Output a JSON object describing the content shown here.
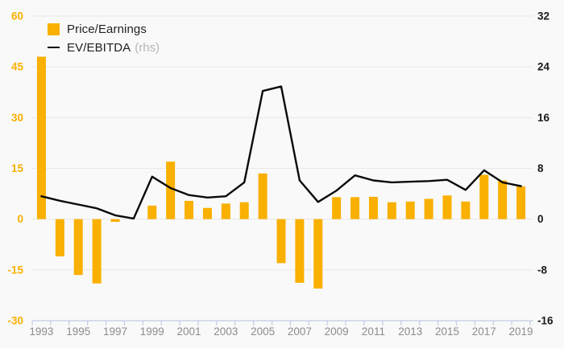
{
  "legend": {
    "price_earnings_label": "Price/Earnings",
    "ev_ebitda_label": "EV/EBITDA",
    "ev_ebitda_suffix": "(rhs)"
  },
  "colors": {
    "background": "#F9F9F9",
    "bar": "#F9B000",
    "line": "#0A0A0A",
    "left_axis_text": "#F9B000",
    "right_axis_text": "#1A1A1A",
    "x_axis_text": "#8C8C8C",
    "rhs_suffix_text": "#B5B5B5",
    "gridline": "#E8E8E8",
    "axis_line": "#C3CBE4"
  },
  "chart_data": {
    "type": "bar+line",
    "title": "",
    "categories": [
      "1993",
      "1994",
      "1995",
      "1996",
      "1997",
      "1998",
      "1999",
      "2000",
      "2001",
      "2002",
      "2003",
      "2004",
      "2005",
      "2006",
      "2007",
      "2008",
      "2009",
      "2010",
      "2011",
      "2012",
      "2013",
      "2014",
      "2015",
      "2016",
      "2017",
      "2018",
      "2019"
    ],
    "x_tick_labels": [
      "1993",
      "1995",
      "1997",
      "1999",
      "2001",
      "2003",
      "2005",
      "2007",
      "2009",
      "2011",
      "2013",
      "2015",
      "2017",
      "2019"
    ],
    "series": [
      {
        "name": "Price/Earnings",
        "type": "bar",
        "axis": "left",
        "color": "#F9B000",
        "values": [
          48,
          -11,
          -16.5,
          -19,
          -0.8,
          0,
          4,
          17,
          5.4,
          3.3,
          4.6,
          5,
          13.5,
          -13,
          -18.8,
          -20.5,
          6.5,
          6.5,
          6.6,
          5,
          5.2,
          6,
          7,
          5.2,
          13.1,
          11.4,
          9.7
        ]
      },
      {
        "name": "EV/EBITDA (rhs)",
        "type": "line",
        "axis": "right",
        "color": "#0A0A0A",
        "values": [
          3.6,
          2.9,
          2.3,
          1.7,
          0.6,
          0.1,
          6.7,
          4.9,
          3.8,
          3.4,
          3.6,
          5.8,
          20.2,
          20.9,
          6.1,
          2.7,
          4.5,
          6.9,
          6.1,
          5.8,
          5.9,
          6.0,
          6.2,
          4.6,
          7.7,
          5.8,
          5.2
        ]
      }
    ],
    "left_axis": {
      "ticks": [
        60,
        45,
        30,
        15,
        0,
        -15,
        -30
      ],
      "min": -30,
      "max": 60
    },
    "right_axis": {
      "ticks": [
        32,
        24,
        16,
        8,
        0,
        -8,
        -16
      ],
      "min": -16,
      "max": 32
    },
    "grid": true,
    "legend_position": "top-left"
  }
}
